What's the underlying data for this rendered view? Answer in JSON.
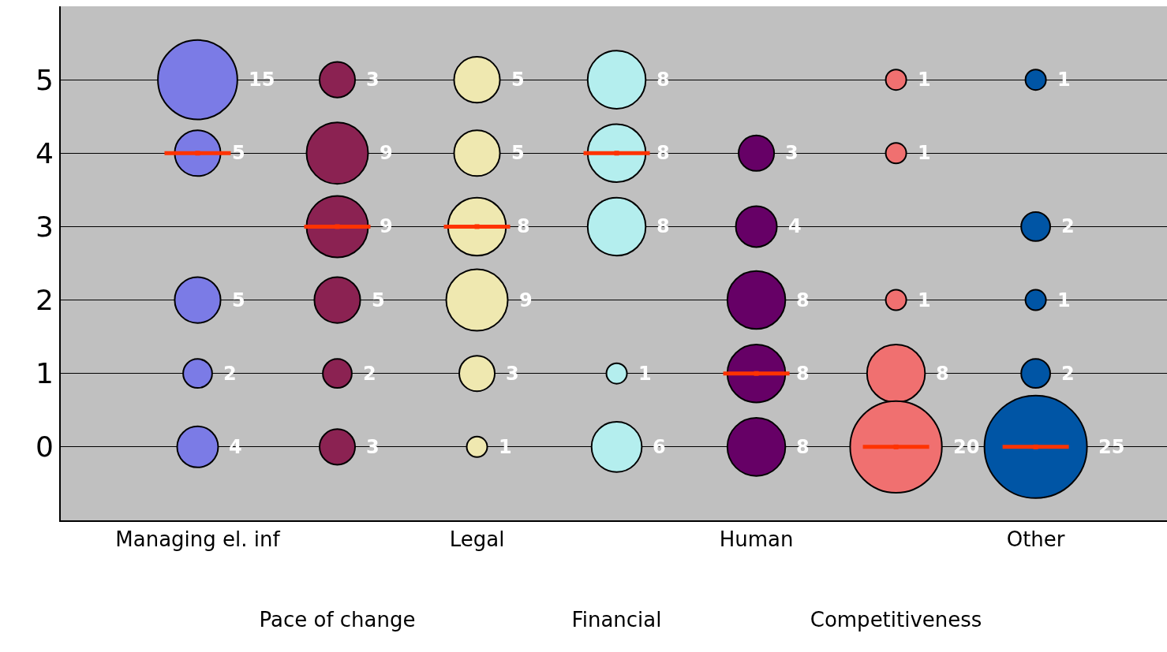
{
  "chart_data": {
    "type": "bubble",
    "categories": [
      "Managing el. inf",
      "Pace of change",
      "Legal",
      "Financial",
      "Human",
      "Competitiveness",
      "Other"
    ],
    "ylim": [
      -1,
      6
    ],
    "yticks": [
      0,
      1,
      2,
      3,
      4,
      5
    ],
    "grid": "y",
    "series": [
      {
        "color": "#7b7be6",
        "x": [
          "Managing el. inf",
          "Managing el. inf",
          "Managing el. inf",
          "Managing el. inf",
          "Managing el. inf"
        ],
        "values": [
          5,
          4,
          2,
          1,
          0
        ],
        "sizes": [
          15,
          5,
          5,
          2,
          4
        ],
        "value_labels": [
          "15",
          "5",
          "5",
          "2",
          "4"
        ]
      },
      {
        "color": "#8b2252",
        "x": [
          "Pace of change",
          "Pace of change",
          "Pace of change",
          "Pace of change",
          "Pace of change",
          "Pace of change"
        ],
        "values": [
          5,
          4,
          3,
          2,
          1,
          0
        ],
        "sizes": [
          3,
          9,
          9,
          5,
          2,
          3
        ],
        "value_labels": [
          "3",
          "9",
          "9",
          "5",
          "2",
          "3"
        ]
      },
      {
        "color": "#efe8b0",
        "x": [
          "Legal",
          "Legal",
          "Legal",
          "Legal",
          "Legal",
          "Legal"
        ],
        "values": [
          5,
          4,
          3,
          2,
          1,
          0
        ],
        "sizes": [
          5,
          5,
          8,
          9,
          3,
          1
        ],
        "value_labels": [
          "5",
          "5",
          "8",
          "9",
          "3",
          "1"
        ]
      },
      {
        "color": "#b4eeee",
        "x": [
          "Financial",
          "Financial",
          "Financial",
          "Financial",
          "Financial"
        ],
        "values": [
          5,
          4,
          3,
          1,
          0
        ],
        "sizes": [
          8,
          8,
          8,
          1,
          6
        ],
        "value_labels": [
          "8",
          "8",
          "8",
          "1",
          "6"
        ]
      },
      {
        "color": "#660066",
        "x": [
          "Human",
          "Human",
          "Human",
          "Human",
          "Human"
        ],
        "values": [
          4,
          3,
          2,
          1,
          0
        ],
        "sizes": [
          3,
          4,
          8,
          8,
          8
        ],
        "value_labels": [
          "3",
          "4",
          "8",
          "8",
          "8"
        ]
      },
      {
        "color": "#f07070",
        "x": [
          "Competitiveness",
          "Competitiveness",
          "Competitiveness",
          "Competitiveness",
          "Competitiveness"
        ],
        "values": [
          5,
          4,
          2,
          1,
          0
        ],
        "sizes": [
          1,
          1,
          1,
          8,
          20
        ],
        "value_labels": [
          "1",
          "1",
          "1",
          "8",
          "20"
        ]
      },
      {
        "color": "#0055a5",
        "x": [
          "Other",
          "Other",
          "Other",
          "Other",
          "Other"
        ],
        "values": [
          5,
          3,
          2,
          1,
          0
        ],
        "sizes": [
          1,
          2,
          1,
          2,
          25
        ],
        "value_labels": [
          "1",
          "2",
          "1",
          "2",
          "25"
        ]
      },
      {
        "type": "scatter",
        "color": "#ff3300",
        "x": [
          "Managing el. inf",
          "Pace of change",
          "Legal",
          "Financial",
          "Human",
          "Competitiveness",
          "Other"
        ],
        "values": [
          4,
          3,
          3,
          4,
          1,
          0,
          0
        ]
      }
    ]
  }
}
